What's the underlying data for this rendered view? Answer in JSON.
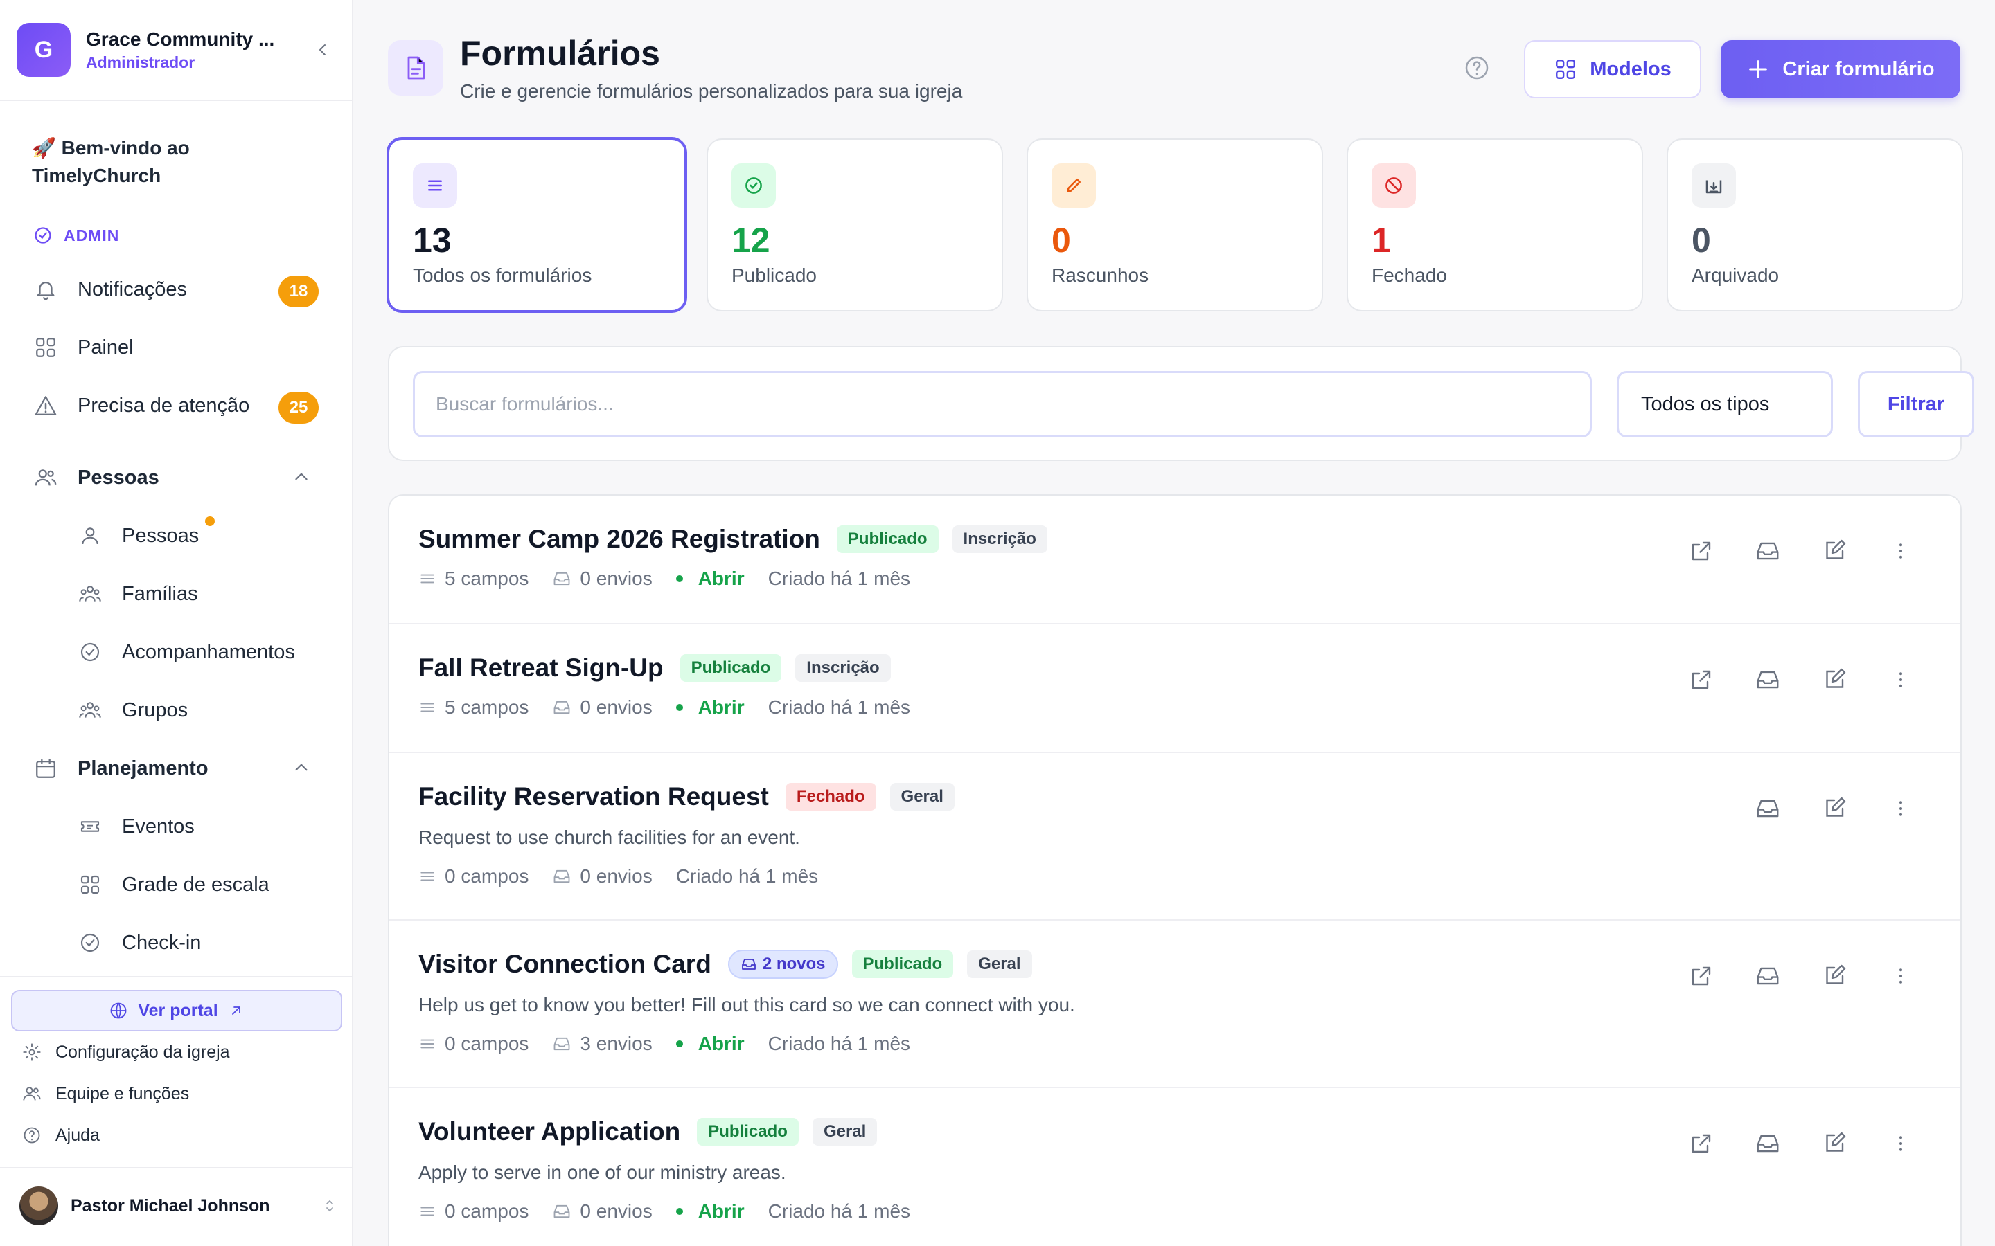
{
  "sidebar": {
    "org_initial": "G",
    "org_name": "Grace Community ...",
    "org_role": "Administrador",
    "welcome": "🚀 Bem-vindo ao TimelyChurch",
    "admin_label": "ADMIN",
    "notifications": {
      "label": "Notificações",
      "count": "18"
    },
    "dashboard": "Painel",
    "attention": {
      "label": "Precisa de atenção",
      "count": "25"
    },
    "people_section": "Pessoas",
    "people_items": [
      "Pessoas",
      "Famílias",
      "Acompanhamentos",
      "Grupos"
    ],
    "planning_section": "Planejamento",
    "planning_items": [
      "Eventos",
      "Grade de escala",
      "Check-in"
    ],
    "portal": "Ver portal",
    "footer_items": [
      "Configuração da igreja",
      "Equipe e funções",
      "Ajuda"
    ],
    "user_name": "Pastor Michael Johnson"
  },
  "header": {
    "title": "Formulários",
    "subtitle": "Crie e gerencie formulários personalizados para sua igreja",
    "models_label": "Modelos",
    "create_label": "Criar formulário"
  },
  "stats": [
    {
      "value": "13",
      "label": "Todos os formulários",
      "color": "#111827"
    },
    {
      "value": "12",
      "label": "Publicado",
      "color": "#16a34a"
    },
    {
      "value": "0",
      "label": "Rascunhos",
      "color": "#ea580c"
    },
    {
      "value": "1",
      "label": "Fechado",
      "color": "#dc2626"
    },
    {
      "value": "0",
      "label": "Arquivado",
      "color": "#4b5563"
    }
  ],
  "filters": {
    "search_placeholder": "Buscar formulários...",
    "type_select": "Todos os tipos",
    "filter_label": "Filtrar"
  },
  "forms": [
    {
      "title": "Summer Camp 2026 Registration",
      "status": "Publicado",
      "type": "Inscrição",
      "fields": "5 campos",
      "submissions": "0 envios",
      "open": "Abrir",
      "created": "Criado há 1 mês"
    },
    {
      "title": "Fall Retreat Sign-Up",
      "status": "Publicado",
      "type": "Inscrição",
      "fields": "5 campos",
      "submissions": "0 envios",
      "open": "Abrir",
      "created": "Criado há 1 mês"
    },
    {
      "title": "Facility Reservation Request",
      "status": "Fechado",
      "type": "Geral",
      "description": "Request to use church facilities for an event.",
      "fields": "0 campos",
      "submissions": "0 envios",
      "created": "Criado há 1 mês"
    },
    {
      "title": "Visitor Connection Card",
      "new_badge": "2 novos",
      "status": "Publicado",
      "type": "Geral",
      "description": "Help us get to know you better! Fill out this card so we can connect with you.",
      "fields": "0 campos",
      "submissions": "3 envios",
      "open": "Abrir",
      "created": "Criado há 1 mês"
    },
    {
      "title": "Volunteer Application",
      "status": "Publicado",
      "type": "Geral",
      "description": "Apply to serve in one of our ministry areas.",
      "fields": "0 campos",
      "submissions": "0 envios",
      "open": "Abrir",
      "created": "Criado há 1 mês"
    }
  ],
  "colors": {
    "accent": "#6d5ff2",
    "published": "#16a34a",
    "closed": "#dc2626",
    "badge": "#f59e0b"
  }
}
